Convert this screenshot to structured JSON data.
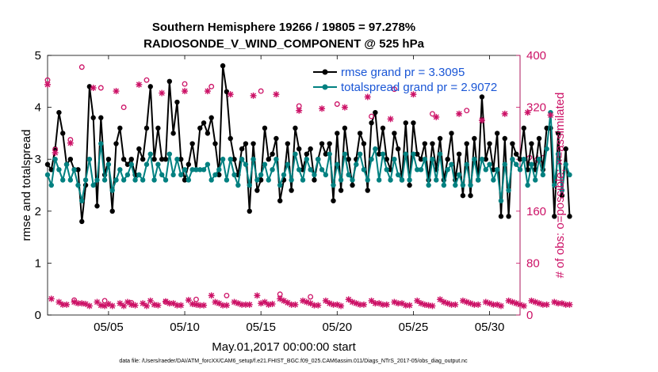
{
  "chart_data": {
    "type": "line",
    "title": "Southern Hemisphere 19266 / 19805 = 97.278%",
    "subtitle": "RADIOSONDE_V_WIND_COMPONENT @ 525 hPa",
    "xlabel": "May.01,2017 00:00:00 start",
    "ylabel_left": "rmse and totalspread",
    "ylabel_right": "# of obs: o=possible; ×=assimilated",
    "ylim_left": [
      0,
      5
    ],
    "ylim_right": [
      0,
      400
    ],
    "xlim": [
      1,
      32
    ],
    "x_ticks": [
      5,
      10,
      15,
      20,
      25,
      30
    ],
    "x_tick_labels": [
      "05/05",
      "05/10",
      "05/15",
      "05/20",
      "05/25",
      "05/30"
    ],
    "y_ticks_left": [
      "0",
      "1",
      "2",
      "3",
      "4",
      "5"
    ],
    "y_ticks_right": [
      "0",
      "80",
      "160",
      "240",
      "320",
      "400"
    ],
    "legend": [
      {
        "label": "rmse grand pr = 3.3095",
        "color": "#000000"
      },
      {
        "label": "totalspread grand pr = 2.9072",
        "color": "#008080"
      }
    ],
    "x_step_days": 0.25,
    "series": [
      {
        "name": "rmse",
        "color": "#000000",
        "axis": "left",
        "values": [
          2.9,
          2.8,
          3.2,
          3.9,
          3.5,
          2.9,
          3.0,
          2.8,
          2.8,
          1.8,
          2.5,
          4.4,
          3.8,
          2.1,
          3.8,
          2.7,
          3.0,
          2.0,
          3.3,
          3.6,
          3.0,
          2.9,
          3.0,
          2.7,
          3.2,
          3.0,
          3.6,
          4.4,
          3.0,
          3.6,
          3.0,
          3.0,
          4.5,
          3.5,
          4.1,
          3.0,
          2.6,
          2.9,
          3.3,
          2.8,
          3.6,
          3.7,
          3.5,
          3.8,
          3.3,
          2.7,
          4.8,
          4.3,
          3.4,
          3.0,
          2.7,
          3.2,
          3.3,
          2.0,
          3.3,
          2.4,
          2.6,
          3.6,
          3.0,
          3.1,
          3.4,
          2.2,
          2.6,
          3.3,
          2.4,
          3.6,
          3.2,
          2.8,
          3.1,
          3.2,
          2.6,
          3.0,
          3.3,
          3.1,
          3.3,
          2.2,
          3.5,
          2.4,
          3.6,
          3.0,
          2.5,
          3.0,
          3.5,
          3.3,
          2.4,
          3.7,
          3.9,
          3.1,
          3.6,
          3.0,
          2.8,
          3.5,
          3.2,
          2.6,
          3.7,
          2.5,
          3.7,
          3.1,
          3.0,
          3.3,
          2.6,
          3.3,
          2.8,
          3.4,
          2.6,
          3.0,
          3.5,
          2.6,
          3.1,
          2.3,
          3.3,
          2.3,
          3.4,
          2.6,
          4.2,
          3.0,
          3.3,
          2.8,
          3.5,
          1.9,
          3.4,
          1.9,
          3.3,
          3.1,
          3.0,
          3.6,
          2.8,
          3.3,
          2.8,
          3.4,
          2.8,
          3.6,
          3.6,
          1.9,
          3.5,
          2.3,
          3.2,
          1.9
        ]
      },
      {
        "name": "totalspread",
        "color": "#008080",
        "axis": "left",
        "values": [
          2.7,
          2.5,
          3.0,
          2.8,
          2.6,
          2.9,
          2.6,
          2.8,
          2.5,
          2.2,
          2.6,
          3.0,
          2.5,
          2.6,
          3.3,
          2.6,
          2.9,
          2.4,
          2.6,
          2.8,
          2.6,
          2.7,
          2.9,
          2.6,
          2.7,
          2.6,
          2.9,
          3.1,
          2.6,
          2.9,
          2.7,
          2.6,
          3.1,
          2.7,
          3.0,
          2.7,
          2.8,
          2.6,
          2.8,
          2.8,
          2.8,
          2.8,
          2.9,
          2.6,
          2.7,
          2.8,
          3.0,
          2.6,
          3.0,
          2.7,
          2.5,
          3.0,
          2.9,
          2.5,
          3.0,
          2.6,
          2.7,
          2.9,
          2.6,
          2.8,
          3.0,
          2.5,
          2.7,
          2.9,
          2.6,
          3.1,
          2.8,
          2.6,
          3.0,
          2.8,
          2.7,
          3.0,
          2.8,
          2.7,
          3.1,
          2.5,
          2.9,
          2.6,
          3.1,
          2.7,
          2.6,
          2.9,
          3.1,
          2.8,
          2.6,
          3.0,
          3.2,
          2.6,
          3.1,
          2.8,
          2.6,
          3.0,
          2.7,
          2.6,
          3.1,
          2.6,
          3.1,
          2.8,
          2.8,
          3.0,
          2.5,
          3.0,
          2.6,
          3.1,
          2.5,
          2.8,
          2.9,
          2.5,
          2.7,
          2.5,
          2.9,
          2.5,
          3.0,
          2.6,
          3.0,
          2.8,
          2.9,
          2.6,
          2.8,
          2.2,
          2.9,
          2.4,
          3.0,
          2.9,
          2.8,
          3.0,
          2.5,
          2.9,
          2.6,
          3.0,
          2.7,
          3.2,
          3.9,
          2.5,
          3.1,
          2.4,
          2.9,
          2.7
        ]
      },
      {
        "name": "obs possible",
        "color": "#cc1166",
        "axis": "right",
        "marker": "o",
        "values": [
          362,
          0,
          255,
          0,
          0,
          0,
          270,
          23,
          0,
          382,
          0,
          0,
          0,
          0,
          350,
          22,
          0,
          0,
          0,
          0,
          320,
          0,
          19,
          0,
          0,
          0,
          362,
          0,
          0,
          0,
          0,
          20,
          0,
          0,
          0,
          0,
          356,
          0,
          0,
          24,
          0,
          0,
          0,
          352,
          0,
          0,
          0,
          30,
          0,
          0,
          0,
          0,
          0,
          0,
          0,
          0,
          345,
          0,
          0,
          0,
          0,
          32,
          0,
          0,
          0,
          0,
          322,
          0,
          0,
          28,
          0,
          0,
          0,
          0,
          0,
          0,
          325,
          0,
          0,
          0,
          0,
          0,
          0,
          0,
          0,
          306,
          0,
          0,
          0,
          0,
          0,
          348,
          0,
          0,
          0,
          0,
          0,
          0,
          0,
          0,
          0,
          310,
          0,
          0,
          0,
          0,
          0,
          0,
          0,
          0,
          315,
          0,
          0,
          0,
          0,
          0,
          0,
          0,
          0,
          0,
          0,
          0,
          0,
          0,
          0,
          0,
          0,
          0,
          0,
          0,
          0,
          0,
          0,
          0,
          0,
          0
        ]
      },
      {
        "name": "obs assimilated",
        "color": "#cc1166",
        "axis": "right",
        "marker": "x",
        "values": [
          355,
          25,
          250,
          20,
          16,
          16,
          265,
          20,
          18,
          18,
          17,
          14,
          350,
          20,
          15,
          14,
          17,
          14,
          345,
          18,
          14,
          20,
          16,
          15,
          355,
          18,
          14,
          22,
          16,
          15,
          342,
          21,
          18,
          18,
          15,
          15,
          345,
          23,
          17,
          16,
          15,
          15,
          345,
          30,
          20,
          18,
          15,
          15,
          340,
          20,
          18,
          16,
          16,
          16,
          338,
          30,
          18,
          20,
          16,
          17,
          340,
          25,
          22,
          19,
          16,
          16,
          315,
          22,
          20,
          18,
          15,
          15,
          318,
          22,
          18,
          16,
          16,
          14,
          320,
          24,
          20,
          18,
          16,
          16,
          336,
          22,
          18,
          18,
          16,
          16,
          302,
          20,
          18,
          18,
          15,
          15,
          340,
          22,
          18,
          16,
          15,
          14,
          305,
          24,
          20,
          18,
          16,
          16,
          310,
          22,
          20,
          18,
          16,
          16,
          300,
          20,
          18,
          16,
          16,
          14,
          310,
          22,
          20,
          18,
          16,
          14,
          312,
          22,
          20,
          18,
          16,
          16,
          308,
          20,
          18,
          18,
          16,
          16
        ]
      }
    ]
  },
  "footnote": "data file: /Users/raeder/DAI/ATM_forcXX/CAM6_setup/f.e21.FHIST_BGC.f09_025.CAM6assim.011/Diags_NTrS_2017-05/obs_diag_output.nc"
}
